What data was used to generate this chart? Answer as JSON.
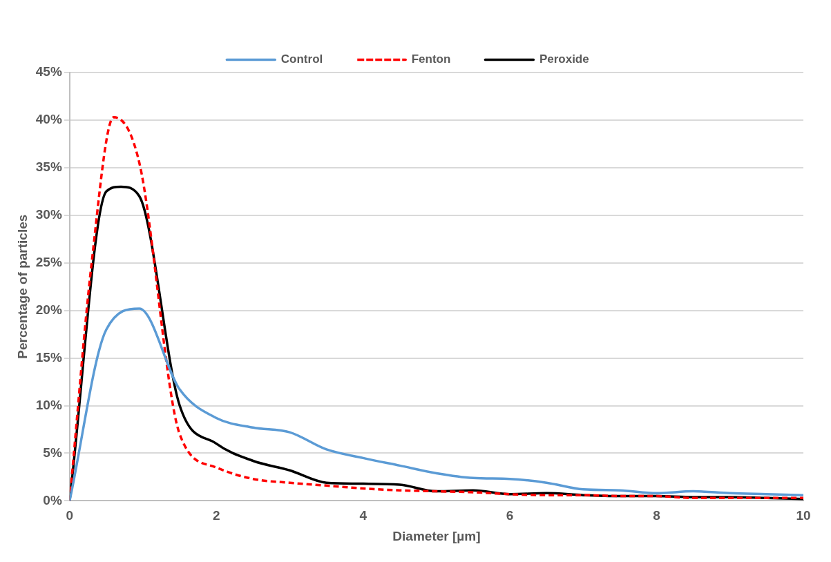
{
  "chart_data": {
    "type": "line",
    "xlabel": "Diameter [µm]",
    "ylabel": "Percentage of particles",
    "xlim": [
      0,
      10
    ],
    "xticks": [
      0,
      2,
      4,
      6,
      8,
      10
    ],
    "ylim": [
      0,
      45
    ],
    "yticks": [
      {
        "value": 0,
        "label": "0%"
      },
      {
        "value": 5,
        "label": "5%"
      },
      {
        "value": 10,
        "label": "10%"
      },
      {
        "value": 15,
        "label": "15%"
      },
      {
        "value": 20,
        "label": "20%"
      },
      {
        "value": 25,
        "label": "25%"
      },
      {
        "value": 30,
        "label": "30%"
      },
      {
        "value": 35,
        "label": "35%"
      },
      {
        "value": 40,
        "label": "40%"
      },
      {
        "value": 45,
        "label": "45%"
      }
    ],
    "grid": "y",
    "legend": "top",
    "marker": "none",
    "series": [
      {
        "name": "Control",
        "color": "#5b9bd5",
        "line_style": "solid",
        "x": [
          0,
          0.5,
          0.95,
          1.5,
          2,
          2.5,
          3,
          3.5,
          4,
          4.5,
          5,
          5.5,
          6,
          6.5,
          7,
          7.5,
          8,
          8.5,
          9,
          9.5,
          10
        ],
        "values": [
          0,
          18,
          20.2,
          11.7,
          8.7,
          7.7,
          7.2,
          5.4,
          4.5,
          3.7,
          2.9,
          2.4,
          2.3,
          1.9,
          1.2,
          1.1,
          0.8,
          1,
          0.8,
          0.7,
          0.6
        ]
      },
      {
        "name": "Fenton",
        "color": "#ff0000",
        "line_style": "dashed",
        "x": [
          0,
          0.3,
          0.6,
          0.95,
          1.5,
          2,
          2.5,
          3,
          3.5,
          4,
          4.5,
          5,
          5.5,
          6,
          6.5,
          7,
          7.5,
          8,
          8.5,
          9,
          9.5,
          10
        ],
        "values": [
          0,
          25,
          40.3,
          35.5,
          7,
          3.5,
          2.3,
          1.9,
          1.6,
          1.3,
          1.1,
          1,
          0.9,
          0.7,
          0.6,
          0.6,
          0.5,
          0.5,
          0.3,
          0.3,
          0.3,
          0.3
        ]
      },
      {
        "name": "Peroxide",
        "color": "#000000",
        "line_style": "solid",
        "x": [
          0,
          0.5,
          0.7,
          0.95,
          1.5,
          2,
          2.5,
          3,
          3.5,
          4,
          4.5,
          5,
          5.5,
          6,
          6.5,
          7,
          7.5,
          8,
          8.5,
          9,
          9.5,
          10
        ],
        "values": [
          0,
          32.5,
          33,
          32,
          10,
          6,
          4.2,
          3.2,
          1.9,
          1.8,
          1.7,
          1,
          1.1,
          0.7,
          0.8,
          0.6,
          0.5,
          0.5,
          0.4,
          0.4,
          0.3,
          0.2
        ]
      }
    ]
  }
}
